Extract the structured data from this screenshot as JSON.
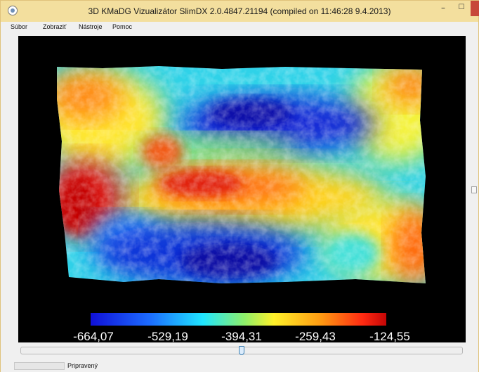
{
  "window": {
    "title": "3D KMaDG Vizualizátor SlimDX 2.0.4847.21194 (compiled on 11:46:28 9.4.2013)",
    "minimize_glyph": "–",
    "maximize_glyph": "☐",
    "close_glyph": "✕"
  },
  "menu": {
    "items": [
      {
        "label": "Súbor"
      },
      {
        "label": "Zobraziť"
      },
      {
        "label": "Nástroje"
      },
      {
        "label": "Pomoc"
      }
    ]
  },
  "viewport": {
    "colorbar": {
      "ticks": [
        "-664,07",
        "-529,19",
        "-394,31",
        "-259,43",
        "-124,55"
      ],
      "colors": [
        "#1010d8",
        "#1c6cff",
        "#20e6ff",
        "#8ef06a",
        "#fff12a",
        "#ff9a12",
        "#ff2a12",
        "#c40606"
      ]
    }
  },
  "status": {
    "text": "Pripravený"
  },
  "icons": {
    "app": "app-icon",
    "window_controls": [
      "minimize-icon",
      "maximize-icon",
      "close-icon"
    ]
  }
}
